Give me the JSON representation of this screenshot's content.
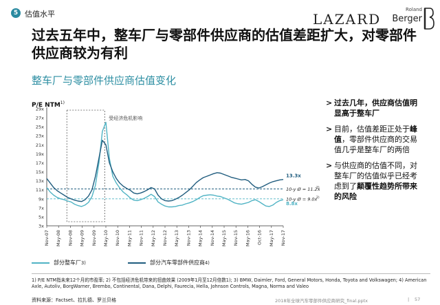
{
  "header": {
    "section_number": "5",
    "section_label": "估值水平",
    "logo_lazard": "LAZARD",
    "logo_rb_top": "Roland",
    "logo_rb_bottom": "Berger"
  },
  "title": "过去五年中，整车厂与零部件供应商的估值差距扩大，对零部件供应商较为有利",
  "subtitle": "整车厂与零部件供应商估值变化",
  "colors": {
    "oem": "#4fb3c4",
    "supplier": "#1f5c7e",
    "accent": "#2e8fa3"
  },
  "chart_data": {
    "type": "line",
    "ylabel": "P/E NTM",
    "ylabel_sup": "1)",
    "y_ticks": [
      "3x",
      "5x",
      "7x",
      "9x",
      "11x",
      "13x",
      "15x",
      "17x",
      "19x",
      "21x",
      "23x",
      "25x",
      "27x",
      "29x"
    ],
    "ylim": [
      3,
      29
    ],
    "x_ticks": [
      "Nov-07",
      "May-08",
      "Nov-08",
      "May-09",
      "Nov-09",
      "May-10",
      "Nov-10",
      "May-11",
      "Nov-11",
      "May-12",
      "Nov-12",
      "May-13",
      "Nov-13",
      "May-14",
      "Nov-14",
      "May-15",
      "Nov-15",
      "May-16",
      "Oct-16",
      "May-17",
      "Nov-17"
    ],
    "annotation": "受经济危机影响",
    "avg_lines": [
      {
        "label": "10-y Ø = 11.2x",
        "sup": "2)",
        "value": 11.2
      },
      {
        "label": "10-y Ø = 9.0x",
        "sup": "2)",
        "value": 9.0
      }
    ],
    "end_labels": [
      "13.3x",
      "8.8x"
    ],
    "series": [
      {
        "name": "部分整车厂",
        "name_sup": "3)",
        "values": [
          11.5,
          10.5,
          9.8,
          9.3,
          9,
          8.8,
          8.5,
          8.3,
          7.8,
          7.5,
          7.3,
          7.6,
          8.2,
          9.5,
          12,
          17,
          24,
          26,
          18,
          14,
          12.5,
          11.4,
          10.5,
          9.9,
          9.2,
          8.7,
          8.6,
          8.8,
          9.1,
          9.5,
          10,
          9.5,
          8.3,
          7.8,
          7.4,
          7.2,
          7.2,
          7.3,
          7.5,
          7.6,
          7.9,
          8.1,
          8.4,
          8.8,
          9.3,
          9.7,
          9.8,
          9.9,
          9.8,
          9.6,
          9.5,
          9.2,
          8.9,
          8.5,
          8.1,
          7.9,
          7.8,
          8,
          8.2,
          8.6,
          8.8,
          8.4,
          7.9,
          7.4,
          7.3,
          7.6,
          8.2,
          8.6,
          8.8
        ]
      },
      {
        "name": "部分汽车零部件供应商",
        "name_sup": "4)",
        "values": [
          13.5,
          12.5,
          11.5,
          10.8,
          10.3,
          9.8,
          9.3,
          9,
          8.7,
          8.5,
          8.4,
          8.8,
          9.6,
          11,
          14,
          18,
          22,
          21,
          17,
          15,
          13.5,
          12.5,
          11.8,
          11.3,
          10.9,
          10.3,
          10.1,
          10.3,
          10.6,
          11,
          11.5,
          11.2,
          9.8,
          9,
          8.6,
          8.5,
          8.6,
          8.9,
          9.3,
          9.8,
          10.4,
          11,
          11.8,
          12.6,
          13.2,
          13.7,
          14,
          14.3,
          14.6,
          14.8,
          14.7,
          14.4,
          14.1,
          13.8,
          13.6,
          13.4,
          13.2,
          13.3,
          13,
          12.2,
          11.6,
          11.4,
          11.7,
          12.1,
          12.5,
          12.8,
          13,
          13.2,
          13.3
        ]
      }
    ]
  },
  "bullets": [
    {
      "parts": [
        {
          "t": "过去几年，供应商估值明显高于整车厂",
          "b": true
        }
      ]
    },
    {
      "parts": [
        {
          "t": "目前，估值差距正处于",
          "b": false
        },
        {
          "t": "峰值",
          "b": true
        },
        {
          "t": "，零部件供应商的交易值几乎是整车厂的两倍",
          "b": false
        }
      ]
    },
    {
      "parts": [
        {
          "t": "与供应商的估值不同，对整车厂的估值似乎已经考虑到了",
          "b": false
        },
        {
          "t": "颠覆性趋势所带来的风险",
          "b": true
        }
      ]
    }
  ],
  "footnote": "1) P/E NTM指未来12个月的市盈率; 2) 不包括经济危机带来的扭曲效果 (2009年1月至12月倍数1); 3) BMW, Daimler, Ford, General Motors, Honda, Toyota and Volkswagen; 4) American Axle, Autoliv, BorgWarner, Brembo, Continental, Dana, Delphi, Faurecia, Hella, Johnson Controls, Magna, Norma and Valeo",
  "source": "资料来源：Factset、拉扎德、罗兰贝格",
  "footer": {
    "file": "2018年全球汽车零部件供应商研究_final.pptx",
    "separator": "|",
    "page": "57"
  }
}
